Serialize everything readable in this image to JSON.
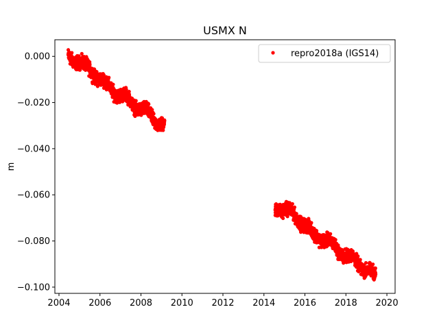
{
  "chart_data": {
    "type": "scatter",
    "title": "USMX N",
    "xlabel": "",
    "ylabel": "m",
    "xlim": [
      2003.8,
      2020.4
    ],
    "ylim": [
      -0.1027,
      0.0072
    ],
    "xticks": [
      2004,
      2006,
      2008,
      2010,
      2012,
      2014,
      2016,
      2018,
      2020
    ],
    "yticks": [
      -0.1,
      -0.08,
      -0.06,
      -0.04,
      -0.02,
      0.0
    ],
    "ytick_labels": [
      "−0.100",
      "−0.080",
      "−0.060",
      "−0.040",
      "−0.020",
      "0.000"
    ],
    "grid": false,
    "legend_position": "top-right",
    "series": [
      {
        "name": "repro2018a (IGS14)",
        "color": "#ff0000",
        "marker": "dot",
        "segments": [
          {
            "x_start": 2004.45,
            "x_end": 2009.15,
            "anchors": [
              [
                2004.45,
                0.0
              ],
              [
                2004.9,
                -0.002
              ],
              [
                2005.4,
                -0.005
              ],
              [
                2005.9,
                -0.009
              ],
              [
                2006.3,
                -0.012
              ],
              [
                2006.8,
                -0.016
              ],
              [
                2007.3,
                -0.018
              ],
              [
                2007.8,
                -0.022
              ],
              [
                2008.3,
                -0.024
              ],
              [
                2008.7,
                -0.028
              ],
              [
                2009.15,
                -0.03
              ]
            ],
            "spread": 0.0035
          },
          {
            "x_start": 2014.55,
            "x_end": 2019.45,
            "anchors": [
              [
                2014.55,
                -0.066
              ],
              [
                2015.0,
                -0.066
              ],
              [
                2015.5,
                -0.069
              ],
              [
                2016.0,
                -0.073
              ],
              [
                2016.4,
                -0.077
              ],
              [
                2016.9,
                -0.079
              ],
              [
                2017.4,
                -0.082
              ],
              [
                2017.9,
                -0.086
              ],
              [
                2018.4,
                -0.088
              ],
              [
                2018.9,
                -0.092
              ],
              [
                2019.45,
                -0.095
              ]
            ],
            "spread": 0.0035
          }
        ]
      }
    ]
  }
}
